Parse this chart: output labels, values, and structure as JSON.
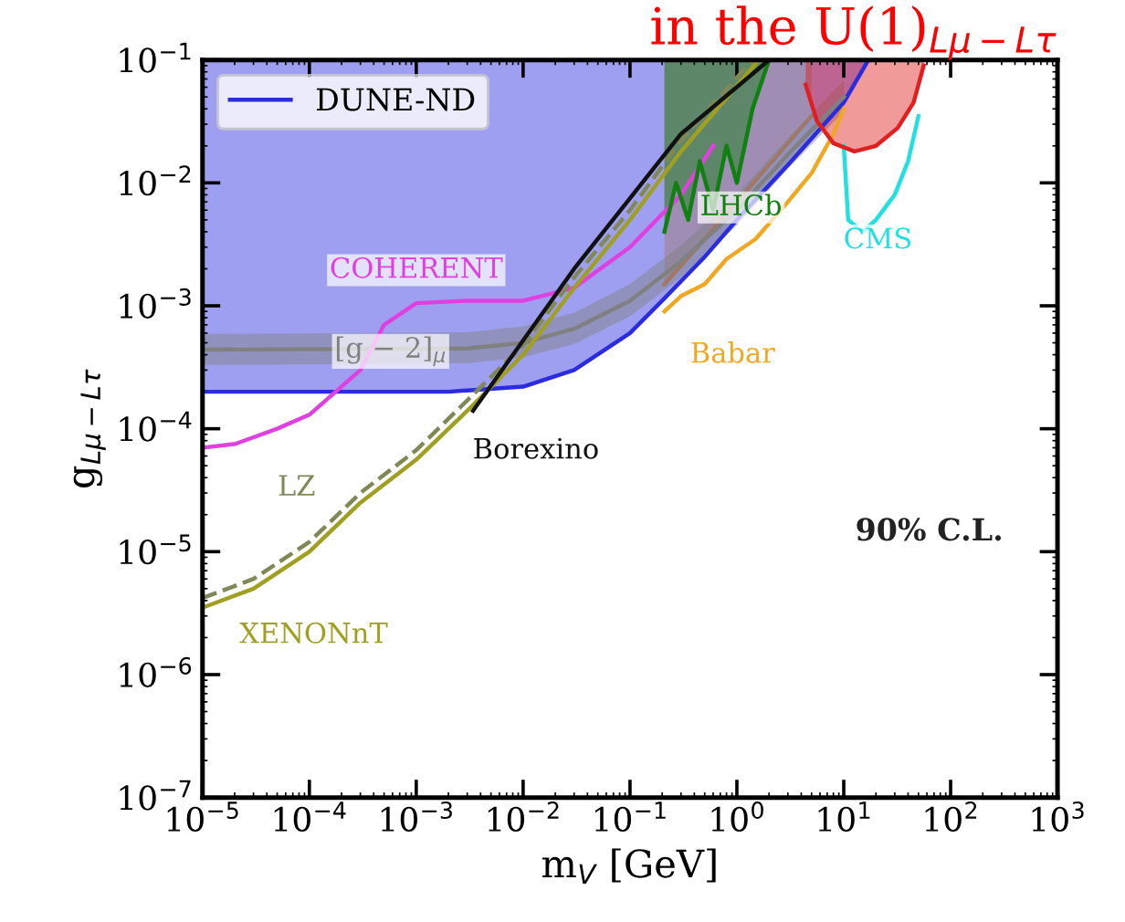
{
  "chart_data": {
    "type": "line",
    "title": "in the U(1)$_{Lμ−Lτ}$",
    "xlabel": "m$_{V}$ [GeV]",
    "ylabel": "g$_{Lμ−Lτ}$",
    "log": "xy",
    "xlim": [
      1e-05,
      1000
    ],
    "ylim": [
      1e-07,
      0.1
    ],
    "xticks": [
      {
        "value": 1e-05,
        "label": "10$^{−5}$"
      },
      {
        "value": 0.0001,
        "label": "10$^{−4}$"
      },
      {
        "value": 0.001,
        "label": "10$^{−3}$"
      },
      {
        "value": 0.01,
        "label": "10$^{−2}$"
      },
      {
        "value": 0.1,
        "label": "10$^{−1}$"
      },
      {
        "value": 1,
        "label": "10$^{0}$"
      },
      {
        "value": 10,
        "label": "10$^{1}$"
      },
      {
        "value": 100,
        "label": "10$^{2}$"
      },
      {
        "value": 1000,
        "label": "10$^{3}$"
      }
    ],
    "yticks": [
      {
        "value": 1e-07,
        "label": "10$^{−7}$"
      },
      {
        "value": 1e-06,
        "label": "10$^{−6}$"
      },
      {
        "value": 1e-05,
        "label": "10$^{−5}$"
      },
      {
        "value": 0.0001,
        "label": "10$^{−4}$"
      },
      {
        "value": 0.001,
        "label": "10$^{−3}$"
      },
      {
        "value": 0.01,
        "label": "10$^{−2}$"
      },
      {
        "value": 0.1,
        "label": "10$^{−1}$"
      }
    ],
    "legend": "top left",
    "grid": false,
    "series": [
      {
        "name": "DUNE-ND",
        "color": "#2b2be0",
        "x": [
          1e-05,
          0.002,
          0.01,
          0.03,
          0.1,
          0.2,
          0.5,
          1,
          3,
          10,
          17
        ],
        "values": [
          0.0002,
          0.0002,
          0.00022,
          0.0003,
          0.0006,
          0.0011,
          0.0025,
          0.005,
          0.014,
          0.045,
          0.1
        ],
        "lower": [
          0.0002,
          0.0002,
          0.00022,
          0.0003,
          0.0006,
          0.0011,
          0.0025,
          0.005,
          0.014,
          0.045,
          0.1
        ],
        "upper": [
          0.1,
          0.1,
          0.1,
          0.1,
          0.1,
          0.1,
          0.1,
          0.1,
          0.1,
          0.1,
          0.1
        ]
      },
      {
        "color": "#a07868",
        "x": [
          0.21,
          0.5,
          1,
          2,
          5
        ],
        "values": [
          0.0015,
          0.0035,
          0.007,
          0.014,
          0.035
        ],
        "lower": [
          0.0015,
          0.0035,
          0.007,
          0.014,
          0.035
        ],
        "upper": [
          0.1,
          0.1,
          0.1,
          0.1,
          0.1
        ]
      },
      {
        "name": "[g − 2]$_{μ}$",
        "color": "#808080",
        "x": [
          1e-05,
          0.003,
          0.01,
          0.03,
          0.1,
          0.3,
          1,
          3,
          10
        ],
        "values": [
          0.00044,
          0.00045,
          0.0005,
          0.00065,
          0.0011,
          0.0023,
          0.006,
          0.017,
          0.05
        ],
        "lower": [
          0.00033,
          0.00034,
          0.00038,
          0.00049,
          0.00082,
          0.0017,
          0.0045,
          0.013,
          0.038
        ],
        "upper": [
          0.00059,
          0.00061,
          0.00068,
          0.00088,
          0.0015,
          0.0031,
          0.0081,
          0.023,
          0.068
        ]
      },
      {
        "name": "COHERENT",
        "color": "#e040e0",
        "x": [
          1e-05,
          2e-05,
          5e-05,
          0.0001,
          0.0003,
          0.0005,
          0.001,
          0.003,
          0.01,
          0.03,
          0.1,
          0.3,
          0.6
        ],
        "values": [
          7e-05,
          7.5e-05,
          0.0001,
          0.00013,
          0.0003,
          0.0007,
          0.00105,
          0.0011,
          0.0011,
          0.0014,
          0.003,
          0.008,
          0.02
        ]
      },
      {
        "name": "Babar",
        "color": "#f0a820",
        "x": [
          0.21,
          0.3,
          0.5,
          0.8,
          1.5,
          3,
          5,
          8,
          10
        ],
        "values": [
          0.0009,
          0.0012,
          0.0015,
          0.0024,
          0.0035,
          0.007,
          0.012,
          0.025,
          0.04
        ]
      },
      {
        "name": "LHCb",
        "color": "#108010",
        "x": [
          0.21,
          0.27,
          0.35,
          0.45,
          0.6,
          0.8,
          1.0,
          1.4,
          2.0
        ],
        "values": [
          0.004,
          0.01,
          0.005,
          0.015,
          0.006,
          0.02,
          0.01,
          0.04,
          0.1
        ],
        "lower": [
          0.004,
          0.01,
          0.005,
          0.015,
          0.006,
          0.02,
          0.01,
          0.04,
          0.1
        ],
        "upper": [
          0.1,
          0.1,
          0.1,
          0.1,
          0.1,
          0.1,
          0.1,
          0.1,
          0.1
        ]
      },
      {
        "name": "CMS",
        "color": "#20e0e0",
        "x": [
          10,
          11,
          15,
          20,
          30,
          40,
          50
        ],
        "values": [
          0.02,
          0.005,
          0.004,
          0.005,
          0.008,
          0.015,
          0.035
        ]
      },
      {
        "color": "#e02020",
        "x": [
          4.4,
          5.6,
          8,
          12.6,
          20,
          32,
          45,
          56
        ],
        "values": [
          0.063,
          0.032,
          0.021,
          0.018,
          0.02,
          0.028,
          0.045,
          0.09
        ],
        "lower": [
          0.063,
          0.032,
          0.021,
          0.018,
          0.02,
          0.028,
          0.045,
          0.09
        ],
        "upper": [
          0.1,
          0.1,
          0.1,
          0.1,
          0.1,
          0.1,
          0.1,
          0.1
        ]
      },
      {
        "name": "LZ",
        "color": "#808858",
        "line_style": "dashed",
        "x": [
          1e-05,
          3e-05,
          0.0001,
          0.0003,
          0.001,
          0.003,
          0.01,
          0.03,
          0.1,
          0.3,
          1.4
        ],
        "values": [
          4.2e-06,
          6e-06,
          1.2e-05,
          3e-05,
          6.7e-05,
          0.00017,
          0.00048,
          0.0017,
          0.006,
          0.022,
          0.1
        ]
      },
      {
        "name": "XENONnT",
        "color": "#a0a020",
        "x": [
          1e-05,
          3e-05,
          0.0001,
          0.0003,
          0.001,
          0.003,
          0.01,
          0.03,
          0.1,
          0.3,
          1.6
        ],
        "values": [
          3.5e-06,
          5e-06,
          1e-05,
          2.5e-05,
          5.6e-05,
          0.00014,
          0.0004,
          0.0014,
          0.005,
          0.018,
          0.1
        ]
      },
      {
        "name": "Borexino",
        "color": "#111111",
        "x": [
          0.0034,
          0.03,
          0.3,
          2
        ],
        "values": [
          0.00014,
          0.002,
          0.025,
          0.1
        ]
      }
    ],
    "annotations": [
      "90% C.L."
    ]
  }
}
